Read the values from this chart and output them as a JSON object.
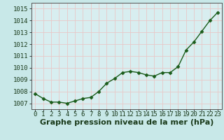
{
  "x": [
    0,
    1,
    2,
    3,
    4,
    5,
    6,
    7,
    8,
    9,
    10,
    11,
    12,
    13,
    14,
    15,
    16,
    17,
    18,
    19,
    20,
    21,
    22,
    23
  ],
  "y": [
    1007.8,
    1007.4,
    1007.1,
    1007.1,
    1007.0,
    1007.2,
    1007.4,
    1007.5,
    1008.0,
    1008.7,
    1009.1,
    1009.6,
    1009.7,
    1009.6,
    1009.4,
    1009.3,
    1009.6,
    1009.6,
    1010.1,
    1011.5,
    1012.2,
    1013.1,
    1014.0,
    1014.7
  ],
  "line_color": "#1a5c1a",
  "marker": "D",
  "marker_size": 2.5,
  "bg_color": "#c8e8e8",
  "plot_bg_color": "#d8eef0",
  "grid_color": "#e8c8c8",
  "ylabel_ticks": [
    1007,
    1008,
    1009,
    1010,
    1011,
    1012,
    1013,
    1014,
    1015
  ],
  "xlabel_label": "Graphe pression niveau de la mer (hPa)",
  "xlim": [
    -0.5,
    23.5
  ],
  "ylim": [
    1006.5,
    1015.5
  ],
  "xlabel_fontsize": 8,
  "tick_fontsize": 6.5,
  "line_width": 1.0
}
